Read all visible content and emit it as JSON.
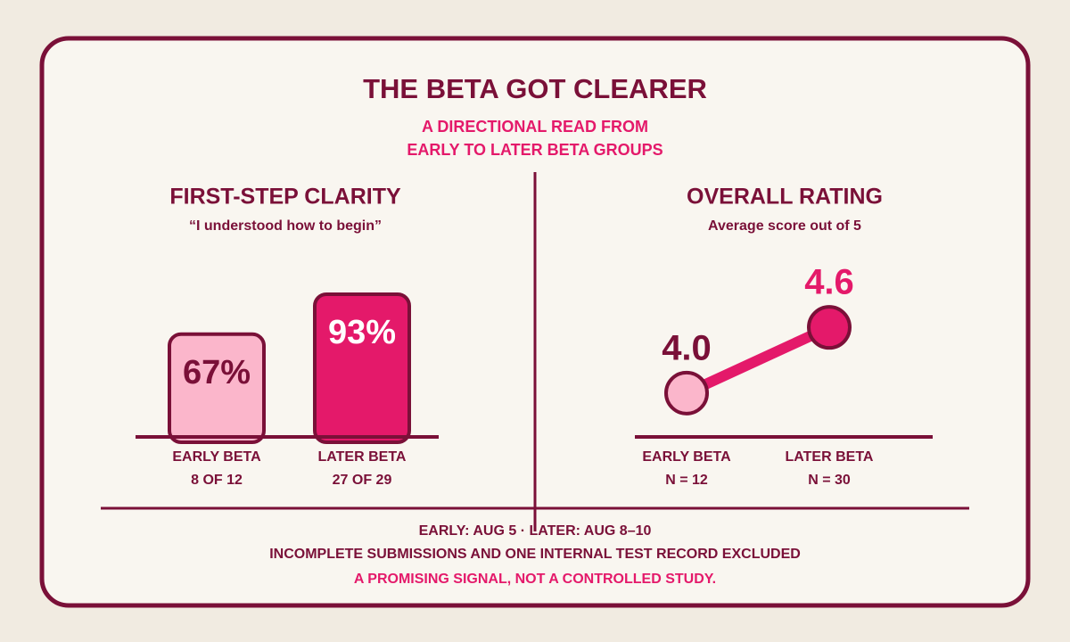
{
  "title": "THE BETA GOT CLEARER",
  "subtitle": [
    "A DIRECTIONAL READ FROM",
    "EARLY TO LATER BETA GROUPS"
  ],
  "footer": [
    "EARLY: AUG 5 · LATER: AUG 8–10",
    "INCOMPLETE SUBMISSIONS AND ONE INTERNAL TEST RECORD EXCLUDED",
    "A PROMISING SIGNAL, NOT A CONTROLLED STUDY."
  ],
  "chart_data": [
    {
      "type": "bar",
      "title": "FIRST-STEP CLARITY",
      "subtitle": "“I understood how to begin”",
      "categories": [
        "EARLY BETA",
        "LATER BETA"
      ],
      "sublabels": [
        "8 OF 12",
        "27 OF 29"
      ],
      "values": [
        67,
        93
      ],
      "value_labels": [
        "67%",
        "93%"
      ],
      "colors": [
        "#fbb6cb",
        "#e4196a"
      ],
      "label_colors": [
        "#7a1038",
        "#ffffff"
      ],
      "ylim": [
        0,
        100
      ]
    },
    {
      "type": "line",
      "title": "OVERALL RATING",
      "subtitle": "Average score out of 5",
      "categories": [
        "EARLY BETA",
        "LATER BETA"
      ],
      "sublabels": [
        "N = 12",
        "N = 30"
      ],
      "values": [
        4.0,
        4.6
      ],
      "value_labels": [
        "4.0",
        "4.6"
      ],
      "colors": [
        "#fbb6cb",
        "#e4196a"
      ],
      "label_colors": [
        "#7a1038",
        "#e4196a"
      ],
      "line_color": "#e4196a",
      "ylim": [
        3.6,
        5
      ]
    }
  ]
}
